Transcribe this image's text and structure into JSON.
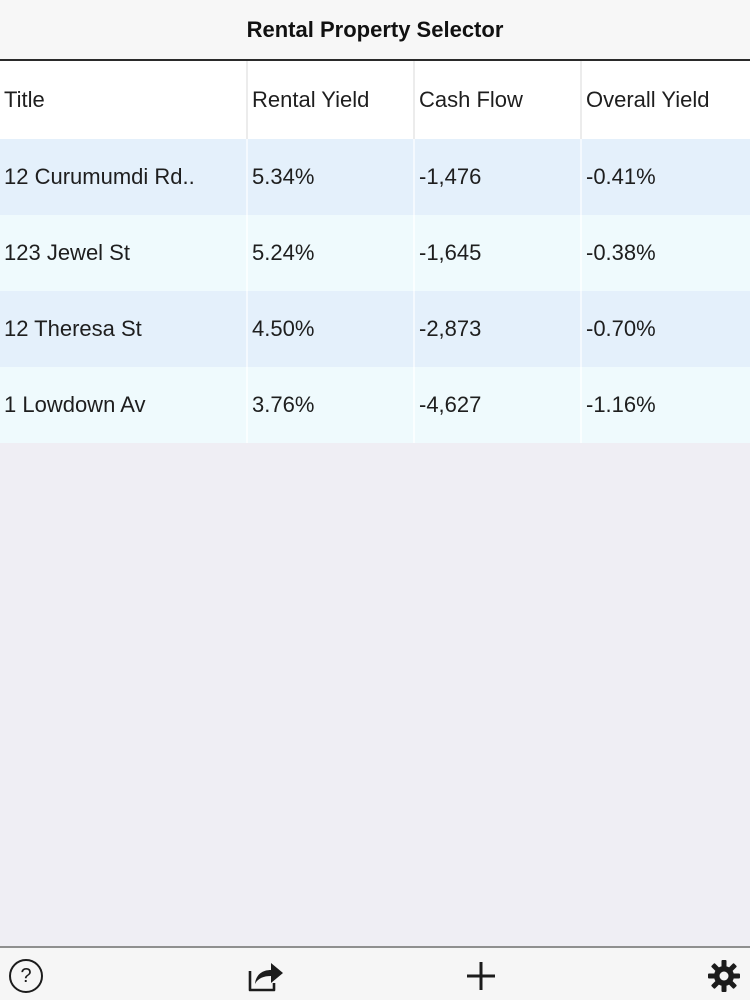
{
  "nav": {
    "title": "Rental Property Selector"
  },
  "table": {
    "headers": [
      "Title",
      "Rental Yield",
      "Cash Flow",
      "Overall Yield"
    ],
    "rows": [
      {
        "title": "12 Curumumdi Rd..",
        "rental_yield": "5.34%",
        "cash_flow": "-1,476",
        "overall_yield": "-0.41%"
      },
      {
        "title": "123 Jewel St",
        "rental_yield": "5.24%",
        "cash_flow": "-1,645",
        "overall_yield": "-0.38%"
      },
      {
        "title": "12 Theresa St",
        "rental_yield": "4.50%",
        "cash_flow": "-2,873",
        "overall_yield": "-0.70%"
      },
      {
        "title": "1 Lowdown Av",
        "rental_yield": "3.76%",
        "cash_flow": "-4,627",
        "overall_yield": "-1.16%"
      }
    ]
  },
  "toolbar": {
    "help_glyph": "?",
    "icons": [
      "help-icon",
      "share-icon",
      "add-icon",
      "settings-icon"
    ]
  },
  "colors": {
    "background": "#efeef4",
    "row_even": "#e4f0fb",
    "row_odd": "#effafd",
    "text": "#1e1e1e"
  }
}
